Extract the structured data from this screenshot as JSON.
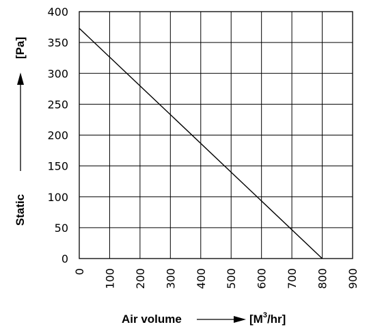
{
  "chart_data": {
    "type": "line",
    "title": "",
    "xlabel": "Air volume",
    "xunit_prefix": "[M",
    "xunit_sup": "3",
    "xunit_suffix": "/hr]",
    "ylabel": "Static",
    "yunit": "[Pa]",
    "xlim": [
      0,
      900
    ],
    "ylim": [
      0,
      400
    ],
    "xticks": [
      0,
      100,
      200,
      300,
      400,
      500,
      600,
      700,
      800,
      900
    ],
    "yticks": [
      0,
      50,
      100,
      150,
      200,
      250,
      300,
      350,
      400
    ],
    "grid": true,
    "series": [
      {
        "x": [
          0,
          800
        ],
        "y": [
          373,
          0
        ]
      }
    ]
  }
}
